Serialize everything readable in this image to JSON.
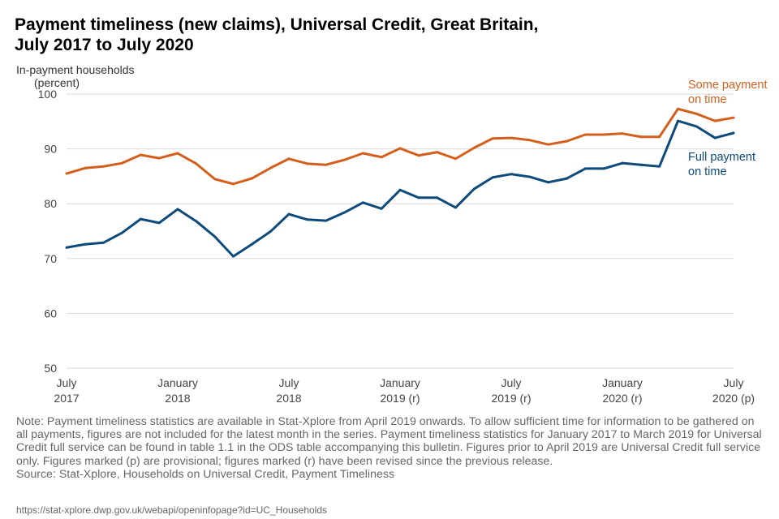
{
  "chart_data": {
    "type": "line",
    "title": "Payment timeliness (new claims), Universal Credit, Great Britain, July 2017 to July 2020",
    "title_lines": [
      "Payment timeliness (new claims), Universal Credit, Great Britain,",
      "July 2017 to July 2020"
    ],
    "ylabel_lines": [
      "In-payment  households",
      "(percent)"
    ],
    "ylim": [
      50,
      100
    ],
    "yticks": [
      50,
      60,
      70,
      80,
      90,
      100
    ],
    "grid": true,
    "x": [
      "2017-07",
      "2017-08",
      "2017-09",
      "2017-10",
      "2017-11",
      "2017-12",
      "2018-01",
      "2018-02",
      "2018-03",
      "2018-04",
      "2018-05",
      "2018-06",
      "2018-07",
      "2018-08",
      "2018-09",
      "2018-10",
      "2018-11",
      "2018-12",
      "2019-01",
      "2019-02",
      "2019-03",
      "2019-04",
      "2019-05",
      "2019-06",
      "2019-07",
      "2019-08",
      "2019-09",
      "2019-10",
      "2019-11",
      "2019-12",
      "2020-01",
      "2020-02",
      "2020-03",
      "2020-04",
      "2020-05",
      "2020-06",
      "2020-07"
    ],
    "xticks": [
      {
        "index": 0,
        "lines": [
          "July",
          "2017"
        ]
      },
      {
        "index": 6,
        "lines": [
          "January",
          "2018"
        ]
      },
      {
        "index": 12,
        "lines": [
          "July",
          "2018"
        ]
      },
      {
        "index": 18,
        "lines": [
          "January",
          "2019 (r)"
        ]
      },
      {
        "index": 24,
        "lines": [
          "July",
          "2019 (r)"
        ]
      },
      {
        "index": 30,
        "lines": [
          "January",
          "2020 (r)"
        ]
      },
      {
        "index": 36,
        "lines": [
          "July",
          "2020 (p)"
        ]
      }
    ],
    "series": [
      {
        "name": "Some payment on time",
        "label_lines": [
          "Some payment",
          "on time"
        ],
        "color": "#d45f1c",
        "values": [
          85.5,
          86.5,
          86.8,
          87.4,
          88.9,
          88.3,
          89.2,
          87.3,
          84.5,
          83.6,
          84.6,
          86.5,
          88.2,
          87.3,
          87.1,
          88.0,
          89.2,
          88.5,
          90.1,
          88.8,
          89.4,
          88.2,
          90.2,
          91.9,
          92.0,
          91.6,
          90.8,
          91.4,
          92.6,
          92.6,
          92.8,
          92.2,
          92.2,
          97.3,
          96.4,
          95.1,
          95.7
        ]
      },
      {
        "name": "Full payment on time",
        "label_lines": [
          "Full payment",
          "on time"
        ],
        "color": "#0e4a7a",
        "values": [
          72.0,
          72.6,
          72.9,
          74.7,
          77.2,
          76.5,
          79.0,
          76.8,
          74.0,
          70.4,
          72.6,
          74.9,
          78.1,
          77.1,
          76.9,
          78.4,
          80.2,
          79.1,
          82.5,
          81.1,
          81.1,
          79.3,
          82.7,
          84.8,
          85.4,
          84.9,
          83.9,
          84.6,
          86.4,
          86.4,
          87.4,
          87.1,
          86.8,
          95.1,
          94.1,
          92.0,
          92.9
        ]
      }
    ]
  },
  "note": "Note: Payment timeliness statistics are available in Stat-Xplore from April 2019 onwards. To allow sufficient time for information to be gathered on all payments, figures are not included for the latest month in the series. Payment timeliness statistics for January 2017 to March 2019 for Universal Credit full service can be found in table 1.1 in the ODS table accompanying this bulletin.  Figures prior to April 2019 are Universal Credit full service only. Figures marked (p) are provisional; figures marked (r) have been revised since the previous release.",
  "source": "Source: Stat-Xplore, Households on Universal Credit, Payment Timeliness",
  "url": "https://stat-xplore.dwp.gov.uk/webapi/openinfopage?id=UC_Households"
}
